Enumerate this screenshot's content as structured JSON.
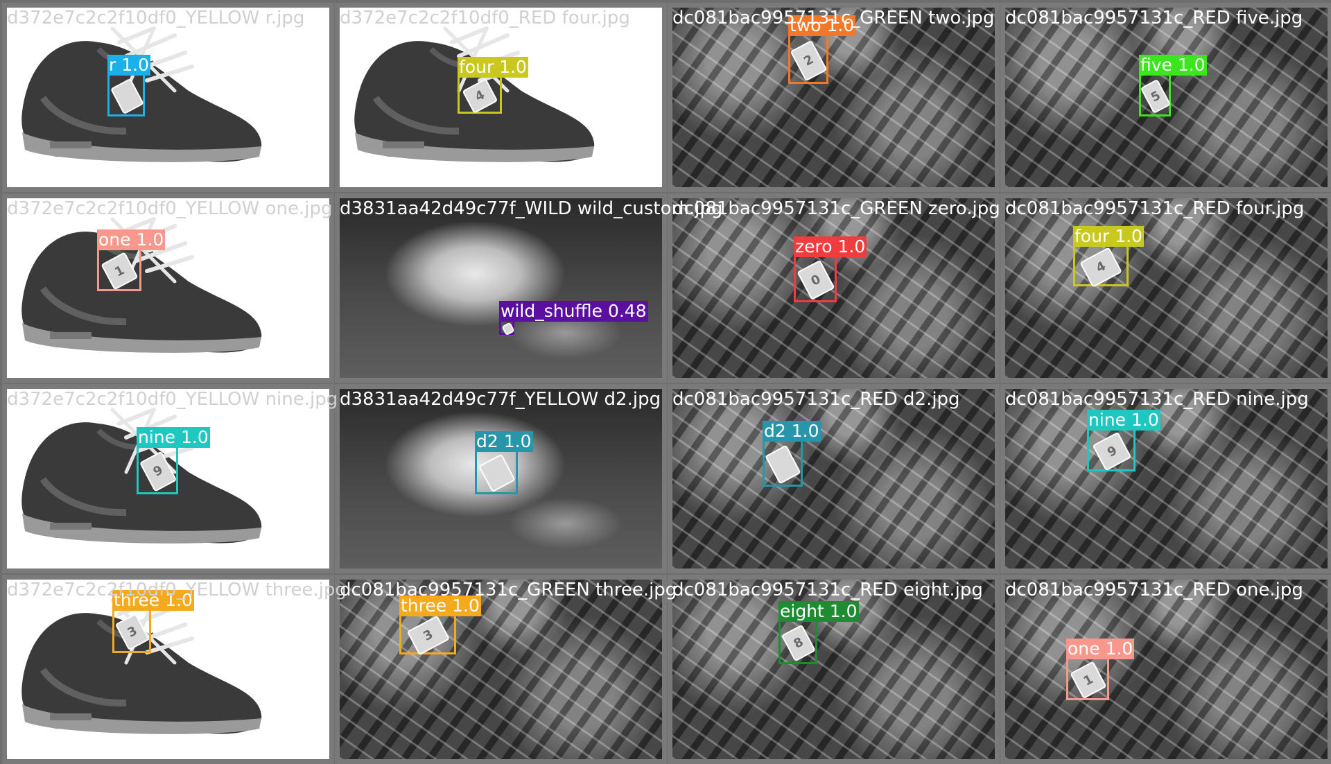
{
  "tiles": [
    {
      "file": "d372e7c2c2f10df0_YELLOW r.jpg",
      "scene": "shoe",
      "label": "r",
      "score": "1.0",
      "color": "#1ab0ea",
      "glyph": ""
    },
    {
      "file": "d372e7c2c2f10df0_RED four.jpg",
      "scene": "shoe",
      "label": "four",
      "score": "1.0",
      "color": "#c8c81e",
      "glyph": "4"
    },
    {
      "file": "dc081bac9957131c_GREEN two.jpg",
      "scene": "leaf",
      "label": "two",
      "score": "1.0",
      "color": "#f07828",
      "glyph": "2"
    },
    {
      "file": "dc081bac9957131c_RED five.jpg",
      "scene": "leaf",
      "label": "five",
      "score": "1.0",
      "color": "#3ce61e",
      "glyph": "5"
    },
    {
      "file": "d372e7c2c2f10df0_YELLOW one.jpg",
      "scene": "shoe",
      "label": "one",
      "score": "1.0",
      "color": "#f8988c",
      "glyph": "1"
    },
    {
      "file": "d3831aa42d49c77f_WILD wild_custom.jpg",
      "scene": "cat",
      "label": "wild_shuffle",
      "score": "0.48",
      "color": "#5a0fa0",
      "glyph": ""
    },
    {
      "file": "dc081bac9957131c_GREEN zero.jpg",
      "scene": "leaf",
      "label": "zero",
      "score": "1.0",
      "color": "#f03c3c",
      "glyph": "0"
    },
    {
      "file": "dc081bac9957131c_RED four.jpg",
      "scene": "leaf",
      "label": "four",
      "score": "1.0",
      "color": "#c8c81e",
      "glyph": "4"
    },
    {
      "file": "d372e7c2c2f10df0_YELLOW nine.jpg",
      "scene": "shoe",
      "label": "nine",
      "score": "1.0",
      "color": "#1ec8c0",
      "glyph": "9"
    },
    {
      "file": "d3831aa42d49c77f_YELLOW d2.jpg",
      "scene": "cat",
      "label": "d2",
      "score": "1.0",
      "color": "#2896aa",
      "glyph": ""
    },
    {
      "file": "dc081bac9957131c_RED d2.jpg",
      "scene": "leaf",
      "label": "d2",
      "score": "1.0",
      "color": "#2896aa",
      "glyph": ""
    },
    {
      "file": "dc081bac9957131c_RED nine.jpg",
      "scene": "leaf",
      "label": "nine",
      "score": "1.0",
      "color": "#1ec8c0",
      "glyph": "9"
    },
    {
      "file": "d372e7c2c2f10df0_YELLOW three.jpg",
      "scene": "shoe",
      "label": "three",
      "score": "1.0",
      "color": "#f5aa1e",
      "glyph": "3"
    },
    {
      "file": "dc081bac9957131c_GREEN three.jpg",
      "scene": "leaf",
      "label": "three",
      "score": "1.0",
      "color": "#f5aa1e",
      "glyph": "3"
    },
    {
      "file": "dc081bac9957131c_RED eight.jpg",
      "scene": "leaf",
      "label": "eight",
      "score": "1.0",
      "color": "#1e8c32",
      "glyph": "8"
    },
    {
      "file": "dc081bac9957131c_RED one.jpg",
      "scene": "leaf",
      "label": "one",
      "score": "1.0",
      "color": "#f8988c",
      "glyph": "1"
    }
  ]
}
